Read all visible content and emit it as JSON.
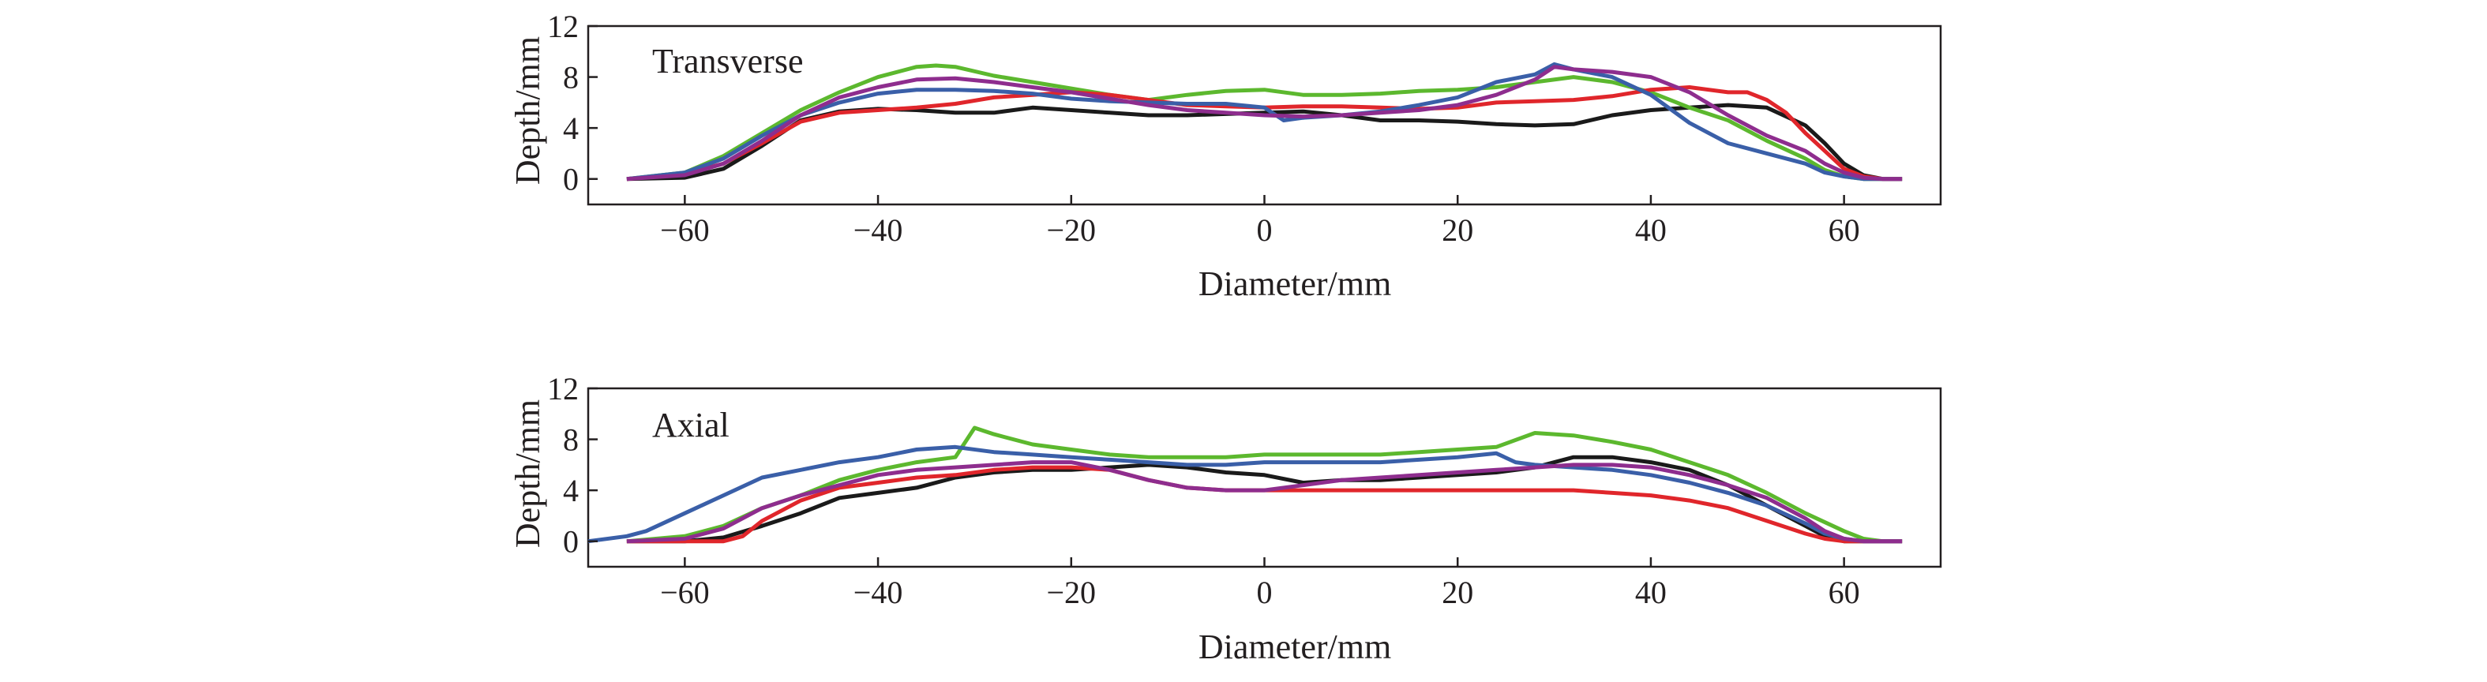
{
  "colors": {
    "black": "#1a1a1a",
    "green": "#5cb82e",
    "red": "#e0262b",
    "blue": "#3a5fa8",
    "purple": "#8e2d8e",
    "axis": "#231f20"
  },
  "chart_data": [
    {
      "type": "line",
      "panel_label": "Transverse",
      "xlabel": "Diameter/mm",
      "ylabel": "Depth/mm",
      "xlim": [
        -70,
        70
      ],
      "ylim": [
        -2,
        12
      ],
      "xticks": [
        -60,
        -40,
        -20,
        0,
        20,
        40,
        60
      ],
      "yticks": [
        0,
        4,
        8,
        12
      ],
      "grid": false,
      "series": [
        {
          "color": "black",
          "x": [
            -66,
            -60,
            -56,
            -52,
            -48,
            -44,
            -40,
            -36,
            -32,
            -28,
            -24,
            -20,
            -16,
            -12,
            -8,
            -4,
            0,
            4,
            8,
            12,
            16,
            20,
            24,
            28,
            32,
            36,
            40,
            44,
            48,
            52,
            56,
            58,
            60,
            62,
            64,
            66
          ],
          "y": [
            0,
            0.1,
            0.8,
            2.6,
            4.6,
            5.3,
            5.5,
            5.4,
            5.2,
            5.2,
            5.6,
            5.4,
            5.2,
            5.0,
            5.0,
            5.1,
            5.2,
            5.3,
            5.0,
            4.6,
            4.6,
            4.5,
            4.3,
            4.2,
            4.3,
            5.0,
            5.4,
            5.6,
            5.8,
            5.6,
            4.2,
            2.8,
            1.2,
            0.3,
            0,
            0
          ]
        },
        {
          "color": "green",
          "x": [
            -66,
            -60,
            -56,
            -52,
            -48,
            -44,
            -40,
            -36,
            -34,
            -32,
            -28,
            -24,
            -20,
            -16,
            -12,
            -8,
            -4,
            0,
            4,
            8,
            12,
            16,
            20,
            24,
            28,
            32,
            36,
            40,
            44,
            48,
            52,
            56,
            58,
            60,
            62,
            64,
            66
          ],
          "y": [
            0,
            0.5,
            1.8,
            3.6,
            5.4,
            6.8,
            8.0,
            8.8,
            8.9,
            8.8,
            8.1,
            7.6,
            7.1,
            6.6,
            6.2,
            6.6,
            6.9,
            7.0,
            6.6,
            6.6,
            6.7,
            6.9,
            7.0,
            7.2,
            7.6,
            8.0,
            7.6,
            6.8,
            5.6,
            4.6,
            3.0,
            1.6,
            0.7,
            0.2,
            0,
            0,
            0
          ]
        },
        {
          "color": "red",
          "x": [
            -66,
            -60,
            -56,
            -52,
            -48,
            -44,
            -40,
            -36,
            -32,
            -28,
            -24,
            -20,
            -16,
            -12,
            -8,
            -4,
            0,
            4,
            8,
            12,
            16,
            20,
            24,
            28,
            32,
            36,
            40,
            44,
            48,
            50,
            52,
            54,
            56,
            58,
            60,
            62,
            64,
            66
          ],
          "y": [
            0,
            0.4,
            1.2,
            2.8,
            4.5,
            5.2,
            5.4,
            5.6,
            5.9,
            6.4,
            6.6,
            6.8,
            6.6,
            6.2,
            5.8,
            5.7,
            5.6,
            5.7,
            5.7,
            5.6,
            5.5,
            5.6,
            6.0,
            6.1,
            6.2,
            6.5,
            7.0,
            7.2,
            6.8,
            6.8,
            6.2,
            5.2,
            3.6,
            2.2,
            0.8,
            0.2,
            0,
            0
          ]
        },
        {
          "color": "blue",
          "x": [
            -66,
            -60,
            -56,
            -52,
            -48,
            -44,
            -40,
            -36,
            -32,
            -28,
            -24,
            -20,
            -16,
            -12,
            -8,
            -4,
            0,
            2,
            4,
            8,
            12,
            16,
            20,
            24,
            28,
            30,
            32,
            36,
            40,
            44,
            48,
            52,
            56,
            58,
            60,
            62,
            64,
            66
          ],
          "y": [
            0,
            0.5,
            1.6,
            3.4,
            5.0,
            6.0,
            6.7,
            7.0,
            7.0,
            6.9,
            6.7,
            6.3,
            6.1,
            6.0,
            5.9,
            5.9,
            5.6,
            4.6,
            4.8,
            5.0,
            5.3,
            5.8,
            6.4,
            7.6,
            8.2,
            9.0,
            8.6,
            8.0,
            6.6,
            4.4,
            2.8,
            2.0,
            1.2,
            0.5,
            0.2,
            0,
            0,
            0
          ]
        },
        {
          "color": "purple",
          "x": [
            -66,
            -60,
            -56,
            -52,
            -48,
            -44,
            -40,
            -36,
            -32,
            -28,
            -24,
            -20,
            -16,
            -12,
            -8,
            -4,
            0,
            4,
            8,
            12,
            16,
            20,
            24,
            28,
            30,
            32,
            36,
            40,
            44,
            48,
            52,
            56,
            58,
            60,
            62,
            64,
            66
          ],
          "y": [
            0,
            0.3,
            1.2,
            3.0,
            5.0,
            6.4,
            7.2,
            7.8,
            7.9,
            7.6,
            7.2,
            6.8,
            6.3,
            5.8,
            5.4,
            5.2,
            5.0,
            4.9,
            5.0,
            5.2,
            5.4,
            5.8,
            6.6,
            7.8,
            8.8,
            8.6,
            8.4,
            8.0,
            6.8,
            5.0,
            3.4,
            2.2,
            1.2,
            0.5,
            0.1,
            0,
            0
          ]
        }
      ]
    },
    {
      "type": "line",
      "panel_label": "Axial",
      "xlabel": "Diameter/mm",
      "ylabel": "Depth/mm",
      "xlim": [
        -70,
        70
      ],
      "ylim": [
        -2,
        12
      ],
      "xticks": [
        -60,
        -40,
        -20,
        0,
        20,
        40,
        60
      ],
      "yticks": [
        0,
        4,
        8,
        12
      ],
      "grid": false,
      "series": [
        {
          "color": "black",
          "x": [
            -66,
            -60,
            -56,
            -52,
            -48,
            -44,
            -40,
            -36,
            -32,
            -28,
            -24,
            -20,
            -16,
            -12,
            -8,
            -4,
            0,
            4,
            8,
            12,
            16,
            20,
            24,
            28,
            32,
            36,
            40,
            44,
            48,
            52,
            56,
            58,
            60,
            62,
            64,
            66
          ],
          "y": [
            0,
            0,
            0.3,
            1.2,
            2.2,
            3.4,
            3.8,
            4.2,
            5.0,
            5.4,
            5.6,
            5.6,
            5.8,
            6.0,
            5.8,
            5.4,
            5.2,
            4.6,
            4.8,
            4.8,
            5.0,
            5.2,
            5.4,
            5.8,
            6.6,
            6.6,
            6.2,
            5.6,
            4.4,
            2.8,
            1.2,
            0.4,
            0,
            0,
            0,
            0
          ]
        },
        {
          "color": "green",
          "x": [
            -66,
            -60,
            -56,
            -52,
            -48,
            -44,
            -40,
            -36,
            -32,
            -30,
            -28,
            -24,
            -20,
            -16,
            -12,
            -8,
            -4,
            0,
            4,
            8,
            12,
            16,
            20,
            24,
            28,
            32,
            36,
            40,
            44,
            48,
            52,
            56,
            60,
            62,
            64,
            66
          ],
          "y": [
            0,
            0.4,
            1.2,
            2.6,
            3.6,
            4.8,
            5.6,
            6.2,
            6.6,
            8.9,
            8.4,
            7.6,
            7.2,
            6.8,
            6.6,
            6.6,
            6.6,
            6.8,
            6.8,
            6.8,
            6.8,
            7.0,
            7.2,
            7.4,
            8.5,
            8.3,
            7.8,
            7.2,
            6.2,
            5.2,
            3.8,
            2.2,
            0.8,
            0.2,
            0,
            0
          ]
        },
        {
          "color": "red",
          "x": [
            -66,
            -60,
            -56,
            -54,
            -52,
            -48,
            -44,
            -40,
            -36,
            -32,
            -28,
            -24,
            -20,
            -16,
            -12,
            -8,
            -4,
            0,
            4,
            8,
            12,
            16,
            20,
            24,
            28,
            32,
            36,
            40,
            44,
            48,
            52,
            56,
            58,
            60,
            62,
            64,
            66
          ],
          "y": [
            0,
            0,
            0,
            0.4,
            1.6,
            3.2,
            4.2,
            4.6,
            5.0,
            5.2,
            5.6,
            5.8,
            5.8,
            5.6,
            4.8,
            4.2,
            4.0,
            4.0,
            4.0,
            4.0,
            4.0,
            4.0,
            4.0,
            4.0,
            4.0,
            4.0,
            3.8,
            3.6,
            3.2,
            2.6,
            1.6,
            0.6,
            0.2,
            0,
            0,
            0,
            0
          ]
        },
        {
          "color": "blue",
          "x": [
            -70,
            -66,
            -64,
            -60,
            -56,
            -52,
            -48,
            -44,
            -40,
            -36,
            -32,
            -28,
            -24,
            -20,
            -16,
            -12,
            -8,
            -4,
            0,
            4,
            8,
            12,
            16,
            20,
            24,
            26,
            28,
            32,
            36,
            40,
            44,
            48,
            52,
            56,
            58,
            60,
            62,
            64,
            66
          ],
          "y": [
            0,
            0.4,
            0.8,
            2.2,
            3.6,
            5.0,
            5.6,
            6.2,
            6.6,
            7.2,
            7.4,
            7.0,
            6.8,
            6.6,
            6.4,
            6.2,
            6.0,
            6.0,
            6.2,
            6.2,
            6.2,
            6.2,
            6.4,
            6.6,
            6.9,
            6.2,
            6.0,
            5.8,
            5.6,
            5.2,
            4.6,
            3.8,
            2.8,
            1.4,
            0.6,
            0.2,
            0,
            0,
            0
          ]
        },
        {
          "color": "purple",
          "x": [
            -66,
            -60,
            -56,
            -52,
            -48,
            -44,
            -40,
            -36,
            -32,
            -28,
            -24,
            -20,
            -16,
            -12,
            -8,
            -4,
            0,
            4,
            8,
            12,
            16,
            20,
            24,
            28,
            32,
            36,
            40,
            44,
            48,
            52,
            56,
            58,
            60,
            62,
            64,
            66
          ],
          "y": [
            0,
            0.2,
            1.0,
            2.6,
            3.6,
            4.4,
            5.2,
            5.6,
            5.8,
            6.0,
            6.2,
            6.2,
            5.6,
            4.8,
            4.2,
            4.0,
            4.0,
            4.4,
            4.8,
            5.0,
            5.2,
            5.4,
            5.6,
            5.8,
            6.0,
            6.0,
            5.8,
            5.2,
            4.4,
            3.4,
            1.8,
            0.8,
            0.2,
            0,
            0,
            0
          ]
        }
      ]
    }
  ]
}
